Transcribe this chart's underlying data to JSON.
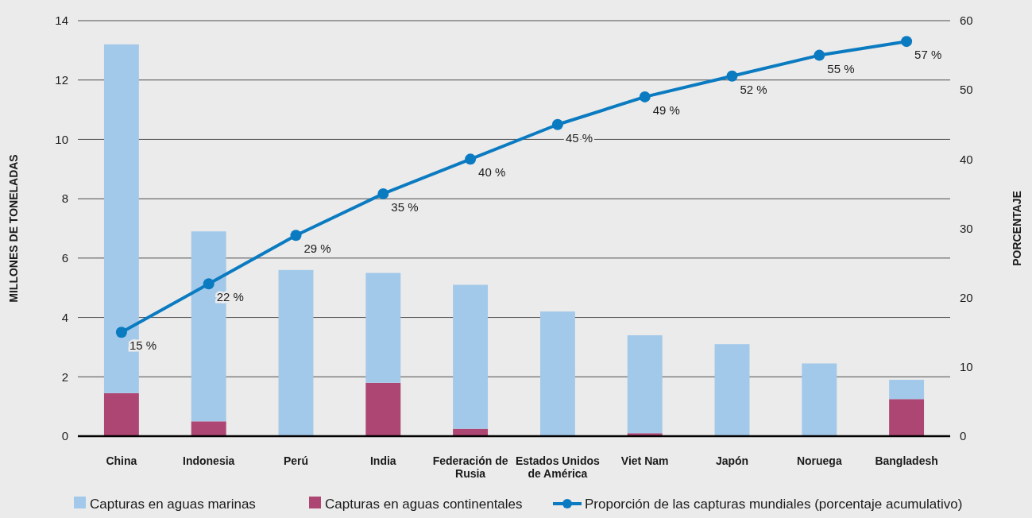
{
  "chart_data": {
    "type": "bar",
    "stacked": true,
    "ylabel": "MILLONES DE TONELADAS",
    "y2label": "PORCENTAJE",
    "categories": [
      "China",
      "Indonesia",
      "Perú",
      "India",
      "Federación de Rusia",
      "Estados Unidos de América",
      "Viet Nam",
      "Japón",
      "Noruega",
      "Bangladesh"
    ],
    "series": [
      {
        "name": "Capturas en aguas continentales",
        "color": "#ad4673",
        "values": [
          1.45,
          0.5,
          0,
          1.8,
          0.25,
          0,
          0.1,
          0,
          0,
          1.25
        ]
      },
      {
        "name": "Capturas en aguas marinas",
        "color": "#a3c9ea",
        "values": [
          11.75,
          6.4,
          5.6,
          3.7,
          4.85,
          4.2,
          3.3,
          3.1,
          2.45,
          0.65
        ]
      },
      {
        "name": "Proporción de las capturas mundiales (porcentaje acumulativo)",
        "type": "line",
        "axis": "y2",
        "color": "#0b7bc1",
        "marker": "circle",
        "values": [
          15,
          22,
          29,
          35,
          40,
          45,
          49,
          52,
          55,
          57
        ],
        "value_labels": [
          "15 %",
          "22 %",
          "29 %",
          "35 %",
          "40 %",
          "45 %",
          "49 %",
          "52 %",
          "55 %",
          "57 %"
        ]
      }
    ],
    "ylim": [
      0,
      14
    ],
    "yticks": [
      0,
      2,
      4,
      6,
      8,
      10,
      12,
      14
    ],
    "y2lim": [
      0,
      60
    ],
    "y2ticks": [
      0,
      10,
      20,
      30,
      40,
      50,
      60
    ],
    "grid": "y",
    "legend": "bottom"
  }
}
